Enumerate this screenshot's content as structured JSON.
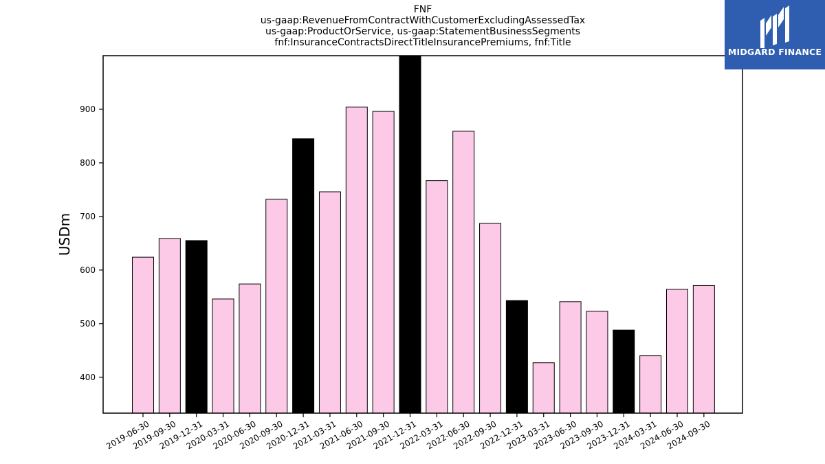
{
  "logo": {
    "name": "MIDGARD FINANCE",
    "icon": "midgard-mark-icon",
    "background_color": "#2f5eb0"
  },
  "chart_data": {
    "type": "bar",
    "title_lines": [
      "FNF",
      "us-gaap:RevenueFromContractWithCustomerExcludingAssessedTax",
      "us-gaap:ProductOrService, us-gaap:StatementBusinessSegments",
      "fnf:InsuranceContractsDirectTitleInsurancePremiums, fnf:Title"
    ],
    "xlabel": "",
    "ylabel": "USDm",
    "ylim": [
      333,
      1000
    ],
    "yticks": [
      400,
      500,
      600,
      700,
      800,
      900
    ],
    "grid": false,
    "categories": [
      "2019-06-30",
      "2019-09-30",
      "2019-12-31",
      "2020-03-31",
      "2020-06-30",
      "2020-09-30",
      "2020-12-31",
      "2021-03-31",
      "2021-06-30",
      "2021-09-30",
      "2021-12-31",
      "2022-03-31",
      "2022-06-30",
      "2022-09-30",
      "2022-12-31",
      "2023-03-31",
      "2023-06-30",
      "2023-09-30",
      "2023-12-31",
      "2024-03-31",
      "2024-06-30",
      "2024-09-30"
    ],
    "values": [
      624,
      659,
      655,
      546,
      574,
      732,
      845,
      746,
      904,
      896,
      1000,
      767,
      859,
      687,
      543,
      427,
      541,
      523,
      488,
      440,
      564,
      571
    ],
    "highlight": [
      false,
      false,
      true,
      false,
      false,
      false,
      true,
      false,
      false,
      false,
      true,
      false,
      false,
      false,
      true,
      false,
      false,
      false,
      true,
      false,
      false,
      false
    ],
    "colors": {
      "bar": "#fccae6",
      "highlight_bar": "#000000",
      "edge": "#000000"
    }
  }
}
